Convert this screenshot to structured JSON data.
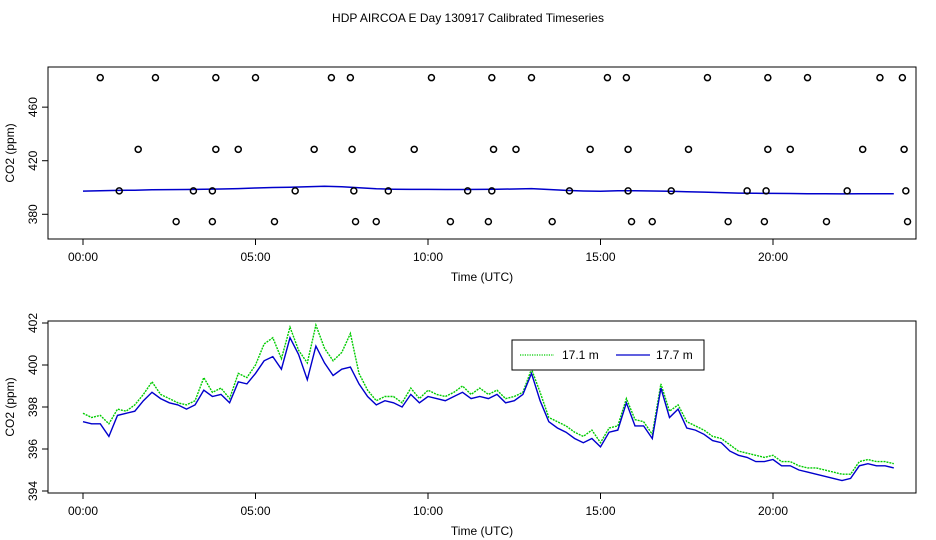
{
  "page_title": "HDP AIRCOA E  Day 130917  Calibrated Timeseries",
  "chart_data": [
    {
      "type": "line+scatter",
      "xlabel": "Time (UTC)",
      "ylabel": "CO2 (ppm)",
      "xlim": [
        0,
        24
      ],
      "ylim": [
        372,
        484
      ],
      "xticks": [
        0,
        5,
        10,
        15,
        20
      ],
      "xtick_labels": [
        "00:00",
        "05:00",
        "10:00",
        "15:00",
        "20:00"
      ],
      "yticks": [
        380,
        420,
        460
      ],
      "ytick_labels": [
        "380",
        "420",
        "460"
      ],
      "line_series": {
        "name": "CO2 timeseries",
        "color": "#0000cc",
        "x": [
          0,
          0.5,
          1,
          1.5,
          2,
          2.5,
          3,
          3.5,
          4,
          4.5,
          5,
          5.5,
          6,
          6.5,
          7,
          7.5,
          8,
          8.5,
          9,
          9.5,
          10,
          10.5,
          11,
          11.5,
          12,
          12.5,
          13,
          13.5,
          14,
          14.5,
          15,
          15.5,
          16,
          16.5,
          17,
          17.5,
          18,
          18.5,
          19,
          19.5,
          20,
          20.5,
          21,
          21.5,
          22,
          22.5,
          23,
          23.5
        ],
        "y": [
          397.3,
          397.5,
          397.8,
          398,
          398.3,
          398.4,
          398.5,
          398.7,
          398.9,
          399.2,
          399.6,
          400,
          400.2,
          400.6,
          401,
          400.5,
          399.8,
          399,
          398.7,
          398.6,
          398.6,
          398.5,
          398.5,
          398.6,
          398.7,
          398.9,
          399.2,
          398.5,
          397.8,
          397.4,
          397.2,
          397.5,
          397.6,
          397.4,
          397.2,
          396.8,
          396.6,
          396.2,
          395.8,
          395.7,
          395.6,
          395.5,
          395.4,
          395.3,
          395.2,
          395.3,
          395.4,
          395.3
        ]
      },
      "scatter_series": {
        "name": "calibration points",
        "marker": "open-circle",
        "x": [
          0.5,
          2.1,
          3.85,
          5,
          7.2,
          7.75,
          10.1,
          11.85,
          13,
          15.2,
          15.75,
          18.1,
          19.85,
          21,
          23.1,
          23.75,
          1.6,
          3.85,
          4.5,
          6.7,
          7.8,
          9.6,
          11.9,
          12.55,
          14.7,
          15.8,
          17.55,
          19.85,
          20.5,
          22.6,
          23.8,
          1.05,
          3.2,
          3.75,
          6.15,
          7.85,
          8.85,
          11.15,
          11.85,
          14.1,
          15.8,
          17.05,
          19.25,
          19.8,
          22.15,
          23.85,
          2.7,
          3.75,
          5.55,
          7.9,
          8.5,
          10.65,
          11.75,
          13.6,
          16.5,
          18.7,
          19.75,
          21.55,
          23.9,
          15.9
        ],
        "y": [
          482,
          482,
          482,
          482,
          482,
          482,
          482,
          482,
          482,
          482,
          482,
          482,
          482,
          482,
          482,
          482,
          428.5,
          428.5,
          428.5,
          428.5,
          428.5,
          428.5,
          428.5,
          428.5,
          428.5,
          428.5,
          428.5,
          428.5,
          428.5,
          428.5,
          428.5,
          397.5,
          397.5,
          397.5,
          397.5,
          397.5,
          397.5,
          397.5,
          397.5,
          397.5,
          397.5,
          397.5,
          397.5,
          397.5,
          397.5,
          397.5,
          374.5,
          374.5,
          374.5,
          374.5,
          374.5,
          374.5,
          374.5,
          374.5,
          374.5,
          374.5,
          374.5,
          374.5,
          374.5,
          374.5
        ]
      }
    },
    {
      "type": "line",
      "xlabel": "Time (UTC)",
      "ylabel": "CO2 (ppm)",
      "xlim": [
        0,
        24
      ],
      "ylim": [
        394,
        402
      ],
      "xticks": [
        0,
        5,
        10,
        15,
        20
      ],
      "xtick_labels": [
        "00:00",
        "05:00",
        "10:00",
        "15:00",
        "20:00"
      ],
      "yticks": [
        394,
        396,
        398,
        400,
        402
      ],
      "ytick_labels": [
        "394",
        "396",
        "398",
        "400",
        "402"
      ],
      "legend": [
        {
          "label": "17.1 m",
          "color": "#00cc00"
        },
        {
          "label": "17.7 m",
          "color": "#0000cc"
        }
      ],
      "series": [
        {
          "name": "17.1 m",
          "color": "#00cc00",
          "x": [
            0,
            0.25,
            0.5,
            0.75,
            1,
            1.25,
            1.5,
            1.75,
            2,
            2.25,
            2.5,
            2.75,
            3,
            3.25,
            3.5,
            3.75,
            4,
            4.25,
            4.5,
            4.75,
            5,
            5.25,
            5.5,
            5.75,
            6,
            6.25,
            6.5,
            6.75,
            7,
            7.25,
            7.5,
            7.75,
            8,
            8.25,
            8.5,
            8.75,
            9,
            9.25,
            9.5,
            9.75,
            10,
            10.25,
            10.5,
            10.75,
            11,
            11.25,
            11.5,
            11.75,
            12,
            12.25,
            12.5,
            12.75,
            13,
            13.25,
            13.5,
            13.75,
            14,
            14.25,
            14.5,
            14.75,
            15,
            15.25,
            15.5,
            15.75,
            16,
            16.25,
            16.5,
            16.75,
            17,
            17.25,
            17.5,
            17.75,
            18,
            18.25,
            18.5,
            18.75,
            19,
            19.25,
            19.5,
            19.75,
            20,
            20.25,
            20.5,
            20.75,
            21,
            21.25,
            21.5,
            21.75,
            22,
            22.25,
            22.5,
            22.75,
            23,
            23.25,
            23.5
          ],
          "y": [
            397.7,
            397.5,
            397.6,
            397.2,
            397.9,
            397.8,
            398.1,
            398.6,
            399.2,
            398.6,
            398.4,
            398.2,
            398.1,
            398.3,
            399.4,
            398.7,
            398.9,
            398.4,
            399.6,
            399.4,
            400,
            401,
            401.3,
            400.3,
            401.8,
            400.7,
            400.1,
            401.9,
            400.8,
            400.2,
            400.6,
            401.5,
            399.6,
            398.8,
            398.3,
            398.5,
            398.5,
            398.2,
            398.9,
            398.4,
            398.8,
            398.6,
            398.5,
            398.7,
            399,
            398.6,
            398.9,
            398.6,
            398.8,
            398.4,
            398.5,
            398.7,
            399.8,
            398.7,
            397.5,
            397.3,
            397.1,
            396.8,
            396.6,
            396.9,
            396.3,
            397,
            397.1,
            398.4,
            397.4,
            397.3,
            396.7,
            399.1,
            397.8,
            398.1,
            397.3,
            397.1,
            396.9,
            396.6,
            396.5,
            396.2,
            395.9,
            395.8,
            395.7,
            395.6,
            395.7,
            395.4,
            395.4,
            395.2,
            395.1,
            395.1,
            395,
            394.9,
            394.8,
            394.8,
            395.4,
            395.5,
            395.4,
            395.4,
            395.3
          ]
        },
        {
          "name": "17.7 m",
          "color": "#0000cc",
          "x": [
            0,
            0.25,
            0.5,
            0.75,
            1,
            1.25,
            1.5,
            1.75,
            2,
            2.25,
            2.5,
            2.75,
            3,
            3.25,
            3.5,
            3.75,
            4,
            4.25,
            4.5,
            4.75,
            5,
            5.25,
            5.5,
            5.75,
            6,
            6.25,
            6.5,
            6.75,
            7,
            7.25,
            7.5,
            7.75,
            8,
            8.25,
            8.5,
            8.75,
            9,
            9.25,
            9.5,
            9.75,
            10,
            10.25,
            10.5,
            10.75,
            11,
            11.25,
            11.5,
            11.75,
            12,
            12.25,
            12.5,
            12.75,
            13,
            13.25,
            13.5,
            13.75,
            14,
            14.25,
            14.5,
            14.75,
            15,
            15.25,
            15.5,
            15.75,
            16,
            16.25,
            16.5,
            16.75,
            17,
            17.25,
            17.5,
            17.75,
            18,
            18.25,
            18.5,
            18.75,
            19,
            19.25,
            19.5,
            19.75,
            20,
            20.25,
            20.5,
            20.75,
            21,
            21.25,
            21.5,
            21.75,
            22,
            22.25,
            22.5,
            22.75,
            23,
            23.25,
            23.5
          ],
          "y": [
            397.3,
            397.2,
            397.2,
            396.6,
            397.6,
            397.7,
            397.8,
            398.3,
            398.7,
            398.4,
            398.2,
            398.1,
            397.9,
            398.1,
            398.8,
            398.5,
            398.6,
            398.2,
            399.2,
            399.1,
            399.6,
            400.2,
            400.4,
            399.8,
            401.3,
            400.5,
            399.3,
            400.9,
            400.1,
            399.5,
            399.8,
            399.9,
            399.1,
            398.5,
            398.1,
            398.3,
            398.2,
            398,
            398.6,
            398.2,
            398.5,
            398.4,
            398.3,
            398.5,
            398.7,
            398.4,
            398.5,
            398.4,
            398.6,
            398.2,
            398.3,
            398.6,
            399.6,
            398.3,
            397.3,
            397,
            396.8,
            396.5,
            396.3,
            396.5,
            396.1,
            396.8,
            396.9,
            398.2,
            397.1,
            397.1,
            396.5,
            398.9,
            397.5,
            397.9,
            397,
            396.9,
            396.7,
            396.4,
            396.3,
            395.9,
            395.7,
            395.6,
            395.4,
            395.4,
            395.5,
            395.2,
            395.2,
            395,
            394.9,
            394.8,
            394.7,
            394.6,
            394.5,
            394.6,
            395.2,
            395.3,
            395.2,
            395.2,
            395.1
          ]
        }
      ]
    }
  ]
}
